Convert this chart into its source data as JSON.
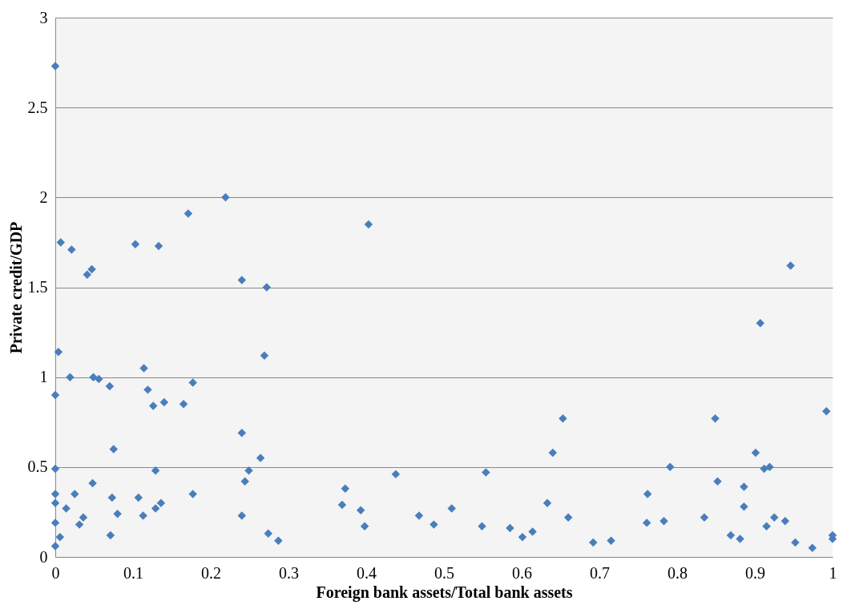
{
  "chart_data": {
    "type": "scatter",
    "xlabel": "Foreign bank assets/Total bank assets",
    "ylabel": "Private credit/GDP",
    "x": [
      0,
      0.007,
      0.021,
      0.004,
      0,
      0.019,
      0,
      0,
      0,
      0,
      0,
      0.006,
      0.014,
      0.025,
      0.031,
      0.036,
      0.041,
      0.047,
      0.049,
      0.056,
      0.048,
      0.07,
      0.075,
      0.073,
      0.071,
      0.08,
      0.103,
      0.114,
      0.119,
      0.126,
      0.107,
      0.113,
      0.129,
      0.129,
      0.136,
      0.133,
      0.14,
      0.165,
      0.171,
      0.177,
      0.177,
      0.219,
      0.24,
      0.272,
      0.24,
      0.244,
      0.249,
      0.24,
      0.264,
      0.269,
      0.274,
      0.287,
      0.403,
      0.369,
      0.373,
      0.393,
      0.398,
      0.438,
      0.468,
      0.487,
      0.51,
      0.549,
      0.554,
      0.585,
      0.601,
      0.614,
      0.633,
      0.64,
      0.653,
      0.66,
      0.692,
      0.715,
      0.762,
      0.761,
      0.783,
      0.791,
      0.835,
      0.849,
      0.852,
      0.869,
      0.881,
      0.886,
      0.886,
      0.901,
      0.907,
      0.912,
      0.919,
      0.915,
      0.925,
      0.939,
      0.946,
      0.952,
      0.974,
      0.992,
      1.0,
      1.0
    ],
    "series": [
      {
        "color": "#4a7ebb",
        "values": [
          2.73,
          1.75,
          1.71,
          1.14,
          0.9,
          1.0,
          0.49,
          0.35,
          0.3,
          0.19,
          0.06,
          0.11,
          0.27,
          0.35,
          0.18,
          0.22,
          1.57,
          1.6,
          1.0,
          0.99,
          0.41,
          0.95,
          0.6,
          0.33,
          0.12,
          0.24,
          1.74,
          1.05,
          0.93,
          0.84,
          0.33,
          0.23,
          0.48,
          0.27,
          0.3,
          1.73,
          0.86,
          0.85,
          1.91,
          0.97,
          0.35,
          2.0,
          1.54,
          1.5,
          0.69,
          0.42,
          0.48,
          0.23,
          0.55,
          1.12,
          0.13,
          0.09,
          1.85,
          0.29,
          0.38,
          0.26,
          0.17,
          0.46,
          0.23,
          0.18,
          0.27,
          0.17,
          0.47,
          0.16,
          0.11,
          0.14,
          0.3,
          0.58,
          0.77,
          0.22,
          0.08,
          0.09,
          0.35,
          0.19,
          0.2,
          0.5,
          0.22,
          0.77,
          0.42,
          0.12,
          0.1,
          0.39,
          0.28,
          0.58,
          1.3,
          0.49,
          0.5,
          0.17,
          0.22,
          0.2,
          1.62,
          0.08,
          0.05,
          0.81,
          0.12,
          0.1
        ]
      }
    ],
    "xlim": [
      0,
      1
    ],
    "xticks": [
      0,
      0.1,
      0.2,
      0.3,
      0.4,
      0.5,
      0.6,
      0.7,
      0.8,
      0.9,
      1
    ],
    "ylim": [
      0,
      3
    ],
    "yticks": [
      0,
      0.5,
      1,
      1.5,
      2,
      2.5,
      3
    ],
    "grid": "y",
    "marker": "diamond",
    "legend": false
  }
}
